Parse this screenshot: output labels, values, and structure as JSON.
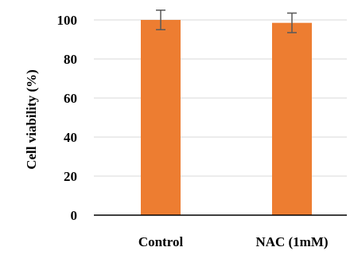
{
  "chart_data": {
    "type": "bar",
    "title": "",
    "xlabel": "",
    "ylabel": "Cell viability (%)",
    "categories": [
      "Control",
      "NAC (1mM)"
    ],
    "series": [
      {
        "values": [
          100,
          98.5
        ],
        "error": [
          5,
          5
        ],
        "color": "#ED7D31"
      }
    ],
    "ylim": [
      0,
      100
    ],
    "yticks": [
      0,
      20,
      40,
      60,
      80,
      100
    ],
    "grid": true,
    "legend": "none"
  }
}
